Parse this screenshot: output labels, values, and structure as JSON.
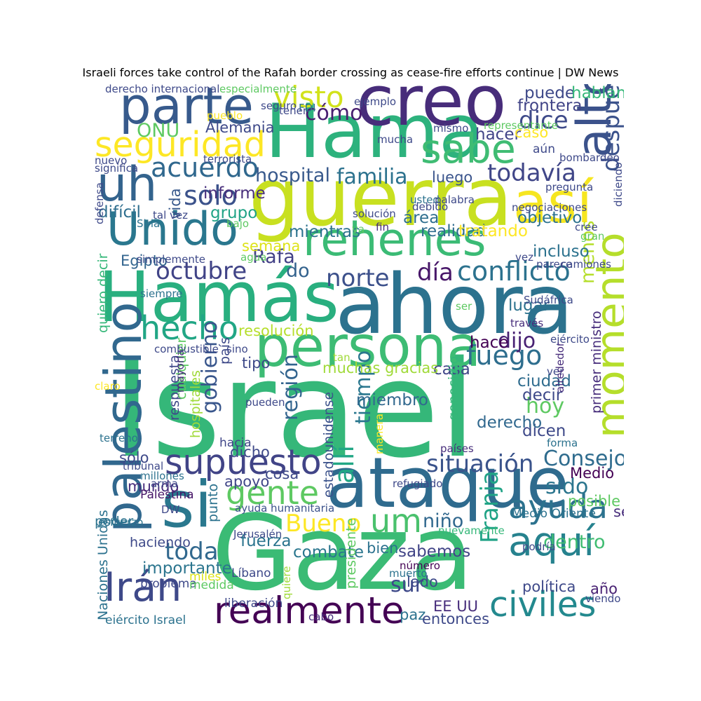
{
  "chart_data": {
    "type": "wordcloud",
    "title": "Israeli forces take control of the Rafah border crossing as cease-fire efforts continue | DW News",
    "colormap": [
      "#440154",
      "#472d7b",
      "#3b528b",
      "#2c728e",
      "#21918c",
      "#28ae80",
      "#5ec962",
      "#addc30",
      "#fde725"
    ],
    "words": [
      {
        "text": "Israel",
        "weight": 100,
        "color": "#35b779"
      },
      {
        "text": "Gaza",
        "weight": 78,
        "color": "#3bbb75"
      },
      {
        "text": "ahora",
        "weight": 62,
        "color": "#2c728e"
      },
      {
        "text": "ataque",
        "weight": 52,
        "color": "#2f6b8e"
      },
      {
        "text": "guerra",
        "weight": 60,
        "color": "#c8e020"
      },
      {
        "text": "Hama",
        "weight": 56,
        "color": "#2db27d"
      },
      {
        "text": "creo",
        "weight": 52,
        "color": "#472c7a"
      },
      {
        "text": "Hamás",
        "weight": 52,
        "color": "#29af7f"
      },
      {
        "text": "si",
        "weight": 48,
        "color": "#2a788e"
      },
      {
        "text": "persona",
        "weight": 42,
        "color": "#3dbc74"
      },
      {
        "text": "palestino",
        "weight": 38,
        "color": "#31688e"
      },
      {
        "text": "parte",
        "weight": 38,
        "color": "#375a8c"
      },
      {
        "text": "así",
        "weight": 42,
        "color": "#f6e620"
      },
      {
        "text": "alto",
        "weight": 36,
        "color": "#3b528b"
      },
      {
        "text": "uh",
        "weight": 36,
        "color": "#33638d"
      },
      {
        "text": "Unido",
        "weight": 34,
        "color": "#2a778e"
      },
      {
        "text": "rehenes",
        "weight": 34,
        "color": "#3bbb75"
      },
      {
        "text": "momento",
        "weight": 32,
        "color": "#b5de2b"
      },
      {
        "text": "sabe",
        "weight": 30,
        "color": "#3fbc73"
      },
      {
        "text": "aquí",
        "weight": 30,
        "color": "#26828e"
      },
      {
        "text": "Irán",
        "weight": 30,
        "color": "#3e4989"
      },
      {
        "text": "realmente",
        "weight": 28,
        "color": "#440154"
      },
      {
        "text": "supuesto",
        "weight": 26,
        "color": "#414487"
      },
      {
        "text": "seguridad",
        "weight": 26,
        "color": "#fde725"
      },
      {
        "text": "civiles",
        "weight": 26,
        "color": "#23898e"
      },
      {
        "text": "hecho",
        "weight": 24,
        "color": "#21a685"
      },
      {
        "text": "gente",
        "weight": 24,
        "color": "#5ec962"
      },
      {
        "text": "ayuda",
        "weight": 24,
        "color": "#2c728e"
      },
      {
        "text": "um",
        "weight": 24,
        "color": "#4ac16d"
      },
      {
        "text": "visto",
        "weight": 22,
        "color": "#d2e21b"
      },
      {
        "text": "solo",
        "weight": 20,
        "color": "#3b528b"
      },
      {
        "text": "fuego",
        "weight": 20,
        "color": "#2e6e8e"
      },
      {
        "text": "acuerdo",
        "weight": 20,
        "color": "#30688e"
      },
      {
        "text": "conflicto",
        "weight": 20,
        "color": "#2c728e"
      },
      {
        "text": "octubre",
        "weight": 18,
        "color": "#414487"
      },
      {
        "text": "situación",
        "weight": 18,
        "color": "#3a538b"
      },
      {
        "text": "todavía",
        "weight": 18,
        "color": "#404688"
      },
      {
        "text": "dice",
        "weight": 18,
        "color": "#3e4a89"
      },
      {
        "text": "día",
        "weight": 18,
        "color": "#481769"
      },
      {
        "text": "norte",
        "weight": 18,
        "color": "#3c508b"
      },
      {
        "text": "después",
        "weight": 18,
        "color": "#3b528b"
      },
      {
        "text": "allí",
        "weight": 20,
        "color": "#22a785"
      },
      {
        "text": "Bueno",
        "weight": 18,
        "color": "#fde725"
      },
      {
        "text": "toda",
        "weight": 18,
        "color": "#31688e"
      },
      {
        "text": "Franja",
        "weight": 18,
        "color": "#20a386"
      },
      {
        "text": "hoy",
        "weight": 16,
        "color": "#5ec962"
      },
      {
        "text": "sido",
        "weight": 16,
        "color": "#2b758e"
      },
      {
        "text": "sur",
        "weight": 16,
        "color": "#3e4989"
      },
      {
        "text": "Consejo",
        "weight": 16,
        "color": "#2f6c8e"
      },
      {
        "text": "gobierno",
        "weight": 16,
        "color": "#39568c"
      },
      {
        "text": "región",
        "weight": 16,
        "color": "#32648e"
      },
      {
        "text": "tiempo",
        "weight": 16,
        "color": "#2a778e"
      },
      {
        "text": "cómo",
        "weight": 16,
        "color": "#481f70"
      },
      {
        "text": "familia",
        "weight": 16,
        "color": "#2c728e"
      },
      {
        "text": "hospital",
        "weight": 14,
        "color": "#38598c"
      },
      {
        "text": "ONU",
        "weight": 14,
        "color": "#5ec962"
      },
      {
        "text": "dijo",
        "weight": 16,
        "color": "#482173"
      },
      {
        "text": "menos",
        "weight": 14,
        "color": "#b5de2b"
      },
      {
        "text": "niño",
        "weight": 14,
        "color": "#31688e"
      },
      {
        "text": "dentro",
        "weight": 14,
        "color": "#40bd72"
      },
      {
        "text": "do",
        "weight": 14,
        "color": "#33628d"
      },
      {
        "text": "Rafa",
        "weight": 14,
        "color": "#424086"
      },
      {
        "text": "sabemos",
        "weight": 12,
        "color": "#414487"
      },
      {
        "text": "importante",
        "weight": 12,
        "color": "#2b758e"
      },
      {
        "text": "combate",
        "weight": 12,
        "color": "#2a768e"
      },
      {
        "text": "fuerza",
        "weight": 12,
        "color": "#2b748e"
      },
      {
        "text": "dicen",
        "weight": 12,
        "color": "#3e4989"
      },
      {
        "text": "derecho",
        "weight": 12,
        "color": "#30688e"
      },
      {
        "text": "miembro",
        "weight": 12,
        "color": "#31688e"
      },
      {
        "text": "ciudad",
        "weight": 12,
        "color": "#2f6c8e"
      },
      {
        "text": "decir",
        "weight": 12,
        "color": "#3e4989"
      },
      {
        "text": "casa",
        "weight": 12,
        "color": "#404688"
      },
      {
        "text": "hace",
        "weight": 12,
        "color": "#440154"
      },
      {
        "text": "lugar",
        "weight": 12,
        "color": "#2c728e"
      },
      {
        "text": "incluso",
        "weight": 12,
        "color": "#2c728e"
      },
      {
        "text": "mientras",
        "weight": 12,
        "color": "#2c728e"
      },
      {
        "text": "realidad",
        "weight": 12,
        "color": "#2f6c8e"
      },
      {
        "text": "tratando",
        "weight": 12,
        "color": "#fde725"
      },
      {
        "text": "área",
        "weight": 12,
        "color": "#2e6e8e"
      },
      {
        "text": "objetivo",
        "weight": 12,
        "color": "#2c728e"
      },
      {
        "text": "puede",
        "weight": 12,
        "color": "#3e4989"
      },
      {
        "text": "hablando",
        "weight": 12,
        "color": "#35b779"
      },
      {
        "text": "frontera",
        "weight": 12,
        "color": "#414487"
      },
      {
        "text": "hacer",
        "weight": 12,
        "color": "#414487"
      },
      {
        "text": "caso",
        "weight": 11,
        "color": "#fde725"
      },
      {
        "text": "luego",
        "weight": 11,
        "color": "#3a548c"
      },
      {
        "text": "informe",
        "weight": 12,
        "color": "#472d7b"
      },
      {
        "text": "vida",
        "weight": 11,
        "color": "#38598c"
      },
      {
        "text": "grupo",
        "weight": 12,
        "color": "#20a386"
      },
      {
        "text": "difícil",
        "weight": 12,
        "color": "#2e6e8e"
      },
      {
        "text": "Alemania",
        "weight": 11,
        "color": "#3e4989"
      },
      {
        "text": "Egipto",
        "weight": 11,
        "color": "#32648e"
      },
      {
        "text": "resolución",
        "weight": 11,
        "color": "#b5de2b"
      },
      {
        "text": "semana",
        "weight": 11,
        "color": "#dde318"
      },
      {
        "text": "muchas gracias",
        "weight": 11,
        "color": "#a0da39"
      },
      {
        "text": "tipo",
        "weight": 11,
        "color": "#3e4989"
      },
      {
        "text": "dicho",
        "weight": 11,
        "color": "#3e4989"
      },
      {
        "text": "apoyo",
        "weight": 11,
        "color": "#404688"
      },
      {
        "text": "cosa",
        "weight": 11,
        "color": "#3e4989"
      },
      {
        "text": "mundo",
        "weight": 11,
        "color": "#472d7b"
      },
      {
        "text": "punto",
        "weight": 10,
        "color": "#2c728e"
      },
      {
        "text": "respuesta",
        "weight": 10,
        "color": "#3e4989"
      },
      {
        "text": "cualquier",
        "weight": 10,
        "color": "#5ec962"
      },
      {
        "text": "quiero decir",
        "weight": 10,
        "color": "#35b779"
      },
      {
        "text": "Naciones Unidas",
        "weight": 10,
        "color": "#2c728e"
      },
      {
        "text": "estadounidense",
        "weight": 10,
        "color": "#3b528b"
      },
      {
        "text": "genocidio",
        "weight": 10,
        "color": "#35b779"
      },
      {
        "text": "primer ministro",
        "weight": 10,
        "color": "#472d7b"
      },
      {
        "text": "presidente",
        "weight": 10,
        "color": "#5ec962"
      },
      {
        "text": "bien",
        "weight": 11,
        "color": "#2c728e"
      },
      {
        "text": "lado",
        "weight": 11,
        "color": "#3e4989"
      },
      {
        "text": "política",
        "weight": 11,
        "color": "#3e4989"
      },
      {
        "text": "año",
        "weight": 11,
        "color": "#482173"
      },
      {
        "text": "EE UU",
        "weight": 11,
        "color": "#472d7b"
      },
      {
        "text": "paz",
        "weight": 11,
        "color": "#2c728e"
      },
      {
        "text": "entonces",
        "weight": 11,
        "color": "#3e4989"
      },
      {
        "text": "Medio",
        "weight": 11,
        "color": "#440154"
      },
      {
        "text": "posible",
        "weight": 11,
        "color": "#5ec962"
      },
      {
        "text": "según",
        "weight": 11,
        "color": "#472d7b"
      },
      {
        "text": "sólo",
        "weight": 11,
        "color": "#3e4989"
      },
      {
        "text": "hospitales",
        "weight": 10,
        "color": "#a0da39"
      },
      {
        "text": "hacia",
        "weight": 9,
        "color": "#404688"
      },
      {
        "text": "país",
        "weight": 10,
        "color": "#3e4989"
      },
      {
        "text": "Palestina",
        "weight": 9,
        "color": "#481769"
      },
      {
        "text": "haciendo",
        "weight": 10,
        "color": "#3e4989"
      },
      {
        "text": "poder",
        "weight": 10,
        "color": "#2c728e"
      },
      {
        "text": "problema",
        "weight": 9,
        "color": "#3e4989"
      },
      {
        "text": "medida",
        "weight": 9,
        "color": "#5ec962"
      },
      {
        "text": "miles",
        "weight": 9,
        "color": "#dde318"
      },
      {
        "text": "ejército Israel",
        "weight": 9,
        "color": "#2c728e"
      },
      {
        "text": "liberación",
        "weight": 9,
        "color": "#3e4989"
      },
      {
        "text": "cabo",
        "weight": 8,
        "color": "#472d7b"
      },
      {
        "text": "Líbano",
        "weight": 9,
        "color": "#3e4989"
      },
      {
        "text": "Jerusalén",
        "weight": 8,
        "color": "#3e4989"
      },
      {
        "text": "ayuda humanitaria",
        "weight": 8,
        "color": "#3b528b"
      },
      {
        "text": "Medio Oriente",
        "weight": 9,
        "color": "#2c728e"
      },
      {
        "text": "refugiado",
        "weight": 8,
        "color": "#3e4989"
      },
      {
        "text": "nuevamente",
        "weight": 8,
        "color": "#35b779"
      },
      {
        "text": "podría",
        "weight": 8,
        "color": "#3e4989"
      },
      {
        "text": "número",
        "weight": 8,
        "color": "#440154"
      },
      {
        "text": "muerto",
        "weight": 8,
        "color": "#2c728e"
      },
      {
        "text": "viendo",
        "weight": 8,
        "color": "#3e4989"
      },
      {
        "text": "países",
        "weight": 8,
        "color": "#472d7b"
      },
      {
        "text": "forma",
        "weight": 8,
        "color": "#2c728e"
      },
      {
        "text": "manera",
        "weight": 8,
        "color": "#fde725"
      },
      {
        "text": "pueden",
        "weight": 8,
        "color": "#3e4989"
      },
      {
        "text": "terreno",
        "weight": 8,
        "color": "#2c728e"
      },
      {
        "text": "tribunal",
        "weight": 8,
        "color": "#3e4989"
      },
      {
        "text": "millones",
        "weight": 8,
        "color": "#2c728e"
      },
      {
        "text": "arma",
        "weight": 8,
        "color": "#3e4989"
      },
      {
        "text": "DW",
        "weight": 8,
        "color": "#3e4989"
      },
      {
        "text": "esfuerzo",
        "weight": 8,
        "color": "#2c728e"
      },
      {
        "text": "claro",
        "weight": 8,
        "color": "#fde725"
      },
      {
        "text": "mayoría",
        "weight": 8,
        "color": "#472d7b"
      },
      {
        "text": "combustible",
        "weight": 8,
        "color": "#3e4989"
      },
      {
        "text": "sino",
        "weight": 8,
        "color": "#3e4989"
      },
      {
        "text": "tan",
        "weight": 8,
        "color": "#a0da39"
      },
      {
        "text": "siempre",
        "weight": 8,
        "color": "#2c728e"
      },
      {
        "text": "ser",
        "weight": 8,
        "color": "#5ec962"
      },
      {
        "text": "través",
        "weight": 8,
        "color": "#472d7b"
      },
      {
        "text": "Sudáfrica",
        "weight": 8,
        "color": "#3e4989"
      },
      {
        "text": "ejército",
        "weight": 8,
        "color": "#3e4989"
      },
      {
        "text": "ver",
        "weight": 8,
        "color": "#3e4989"
      },
      {
        "text": "alrededor",
        "weight": 8,
        "color": "#472d7b"
      },
      {
        "text": "simplemente",
        "weight": 8,
        "color": "#3e4989"
      },
      {
        "text": "agua",
        "weight": 8,
        "color": "#5ec962"
      },
      {
        "text": "va",
        "weight": 8,
        "color": "#5ec962"
      },
      {
        "text": "fin",
        "weight": 8,
        "color": "#472d7b"
      },
      {
        "text": "vez",
        "weight": 8,
        "color": "#3e4989"
      },
      {
        "text": "parece",
        "weight": 8,
        "color": "#3e4989"
      },
      {
        "text": "camiones",
        "weight": 8,
        "color": "#3e4989"
      },
      {
        "text": "solución",
        "weight": 8,
        "color": "#3e4989"
      },
      {
        "text": "bajo",
        "weight": 8,
        "color": "#5ec962"
      },
      {
        "text": "tal vez",
        "weight": 8,
        "color": "#3e4989"
      },
      {
        "text": "Siria",
        "weight": 8,
        "color": "#2c728e"
      },
      {
        "text": "defensa",
        "weight": 8,
        "color": "#3e4989"
      },
      {
        "text": "usted",
        "weight": 8,
        "color": "#2c728e"
      },
      {
        "text": "palabra",
        "weight": 8,
        "color": "#3e4989"
      },
      {
        "text": "debido",
        "weight": 8,
        "color": "#3e4989"
      },
      {
        "text": "negociaciones",
        "weight": 8,
        "color": "#3e4989"
      },
      {
        "text": "cree",
        "weight": 8,
        "color": "#3e4989"
      },
      {
        "text": "gran",
        "weight": 8,
        "color": "#5ec962"
      },
      {
        "text": "pregunta",
        "weight": 8,
        "color": "#3e4989"
      },
      {
        "text": "diciendo",
        "weight": 8,
        "color": "#3e4989"
      },
      {
        "text": "bombardeo",
        "weight": 8,
        "color": "#3e4989"
      },
      {
        "text": "aún",
        "weight": 9,
        "color": "#3e4989"
      },
      {
        "text": "representante",
        "weight": 8,
        "color": "#5ec962"
      },
      {
        "text": "mismo",
        "weight": 8,
        "color": "#3e4989"
      },
      {
        "text": "mucha",
        "weight": 8,
        "color": "#3e4989"
      },
      {
        "text": "ejemplo",
        "weight": 8,
        "color": "#3e4989"
      },
      {
        "text": "seguro",
        "weight": 8,
        "color": "#3e4989"
      },
      {
        "text": "FDI",
        "weight": 8,
        "color": "#2c728e"
      },
      {
        "text": "tener",
        "weight": 8,
        "color": "#3e4989"
      },
      {
        "text": "pueblo",
        "weight": 8,
        "color": "#fde725"
      },
      {
        "text": "terrorista",
        "weight": 8,
        "color": "#3e4989"
      },
      {
        "text": "nuevo",
        "weight": 8,
        "color": "#3e4989"
      },
      {
        "text": "significa",
        "weight": 8,
        "color": "#3e4989"
      },
      {
        "text": "derecho internacional",
        "weight": 8,
        "color": "#3e4989"
      },
      {
        "text": "especialmente",
        "weight": 8,
        "color": "#5ec962"
      },
      {
        "text": "quiere",
        "weight": 8,
        "color": "#a0da39"
      }
    ]
  }
}
